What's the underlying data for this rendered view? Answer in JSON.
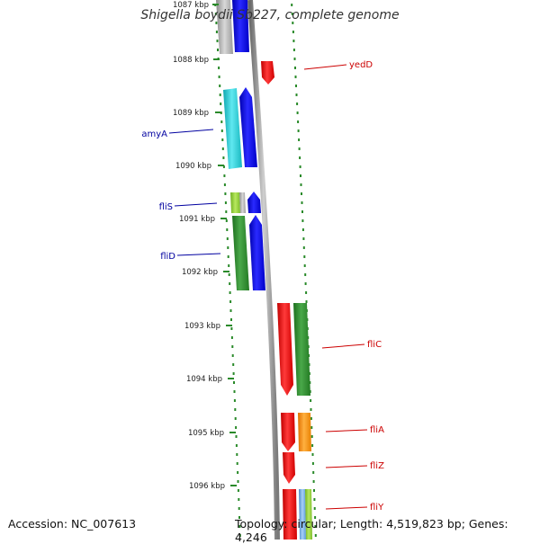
{
  "header": {
    "title": "Shigella boydii Sb227, complete genome"
  },
  "footer": {
    "accession": "Accession: NC_007613",
    "summary": "Topology: circular; Length: 4,519,823 bp; Genes: 4,246"
  },
  "scale_ticks": [
    {
      "label": "1087 kbp"
    },
    {
      "label": "1088 kbp"
    },
    {
      "label": "1089 kbp"
    },
    {
      "label": "1090 kbp"
    },
    {
      "label": "1091 kbp"
    },
    {
      "label": "1092 kbp"
    },
    {
      "label": "1093 kbp"
    },
    {
      "label": "1094 kbp"
    },
    {
      "label": "1095 kbp"
    },
    {
      "label": "1096 kbp"
    }
  ],
  "gene_labels": {
    "left": [
      {
        "name": "amyA",
        "color": "#0000a0"
      },
      {
        "name": "fliS",
        "color": "#0000a0"
      },
      {
        "name": "fliD",
        "color": "#0000a0"
      }
    ],
    "right": [
      {
        "name": "yedD",
        "color": "#cc0000"
      },
      {
        "name": "fliC",
        "color": "#cc0000"
      },
      {
        "name": "fliA",
        "color": "#cc0000"
      },
      {
        "name": "fliZ",
        "color": "#cc0000"
      },
      {
        "name": "fliY",
        "color": "#cc0000"
      }
    ]
  },
  "colors": {
    "backbone": "#8c8c8c",
    "dots": "#2a8a2a",
    "blue_feature": "#0000ee",
    "cyan_feature": "#20c8d0",
    "green_feature": "#2a8a2a",
    "red_feature": "#ee0000",
    "orange_feature": "#ff8c00",
    "gray_feature": "#a8a8a8",
    "lightgreen_feature": "#88cc33",
    "lightblue_feature": "#5aa0e0"
  }
}
